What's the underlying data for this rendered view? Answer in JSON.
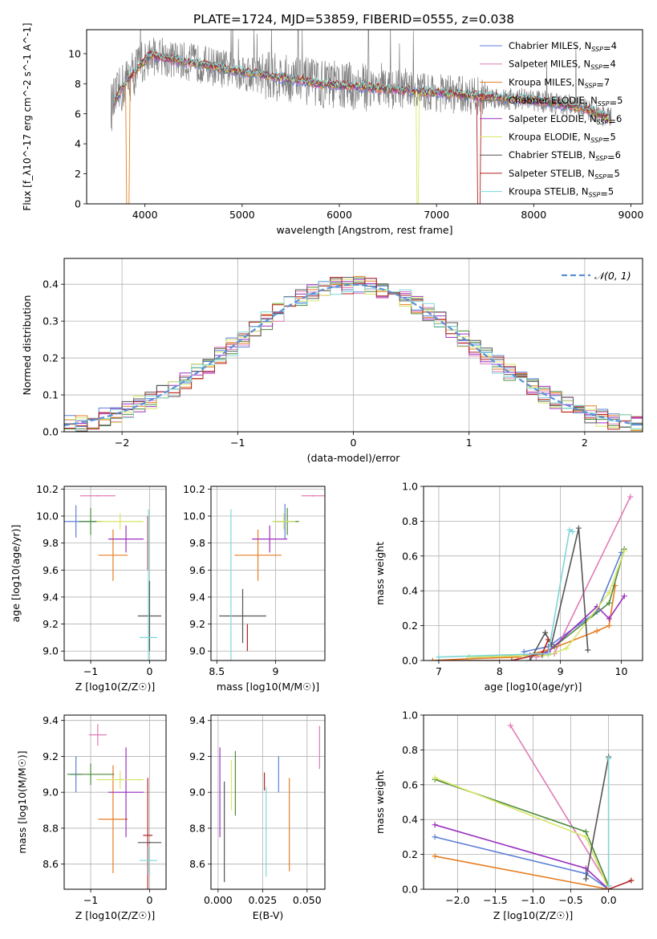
{
  "figure_title": "PLATE=1724, MJD=53859, FIBERID=0555, z=0.038",
  "colors": {
    "Chabrier MILES": "#5b7fd6",
    "Salpeter MILES": "#e07bb6",
    "Kroupa MILES": "#e67e22",
    "Chabrier ELODIE": "#4d8a3a",
    "Salpeter ELODIE": "#9b30c0",
    "Kroupa ELODIE": "#d8e66a",
    "Chabrier STELIB": "#555555",
    "Salpeter STELIB": "#b22222",
    "Kroupa STELIB": "#7fd6d8",
    "data": "#7f7f7f",
    "normal": "#5b8fd6"
  },
  "chart_data": [
    {
      "id": "spectrum",
      "type": "line",
      "xlabel": "wavelength [Angstrom, rest frame]",
      "ylabel": "Flux [f_λ10^-17 erg cm^-2 s^-1 A^-1]",
      "xlim": [
        3400,
        9120
      ],
      "ylim": [
        0,
        11.6
      ],
      "xticks": [
        4000,
        5000,
        6000,
        7000,
        8000,
        9000
      ],
      "yticks": [
        0,
        2,
        4,
        6,
        8,
        10
      ],
      "legend_position": "top-right",
      "legend": [
        {
          "model": "Chabrier MILES",
          "nssp": "4"
        },
        {
          "model": "Salpeter MILES",
          "nssp": "4"
        },
        {
          "model": "Kroupa MILES",
          "nssp": "7"
        },
        {
          "model": "Chabrier ELODIE",
          "nssp": "5"
        },
        {
          "model": "Salpeter ELODIE",
          "nssp": "6"
        },
        {
          "model": "Kroupa ELODIE",
          "nssp": "5"
        },
        {
          "model": "Chabrier STELIB",
          "nssp": "6"
        },
        {
          "model": "Salpeter STELIB",
          "nssp": "5"
        },
        {
          "model": "Kroupa STELIB",
          "nssp": "5"
        }
      ],
      "data_range": [
        3650,
        8800
      ],
      "model_continuum": {
        "x": [
          3650,
          3800,
          3950,
          4050,
          4200,
          4400,
          4600,
          4800,
          5000,
          5200,
          5400,
          5600,
          5800,
          6000,
          6200,
          6400,
          6600,
          6800,
          7000,
          7200,
          7400,
          7600,
          7800,
          8000,
          8200,
          8400,
          8600,
          8800
        ],
        "y": [
          6.4,
          8.1,
          9.2,
          9.9,
          9.7,
          9.5,
          9.3,
          9.0,
          8.8,
          8.6,
          8.4,
          8.2,
          8.0,
          7.9,
          7.8,
          7.7,
          7.6,
          7.5,
          7.4,
          7.3,
          7.2,
          7.1,
          7.0,
          6.9,
          6.7,
          6.5,
          6.2,
          5.6
        ]
      },
      "model_cutoffs": {
        "Kroupa MILES": 3810,
        "Kroupa ELODIE": 6790,
        "Salpeter STELIB": 7420
      }
    },
    {
      "id": "residual_hist",
      "type": "area",
      "xlabel": "(data-model)/error",
      "ylabel": "Normed distribution",
      "xlim": [
        -2.5,
        2.5
      ],
      "ylim": [
        0,
        0.47
      ],
      "xticks": [
        -2,
        -1,
        0,
        1,
        2
      ],
      "yticks": [
        0.0,
        0.1,
        0.2,
        0.3,
        0.4
      ],
      "grid": true,
      "legend": "𝒩(0, 1)",
      "legend_position": "top-right",
      "bin_width": 0.1
    },
    {
      "id": "age_vs_Z",
      "type": "scatter",
      "xlabel": "Z [log10(Z/Z☉)]",
      "ylabel": "age  [log10(age/yr)]",
      "xlim": [
        -1.45,
        0.28
      ],
      "ylim": [
        8.93,
        10.22
      ],
      "xticks": [
        -1,
        0
      ],
      "yticks": [
        9.0,
        9.2,
        9.4,
        9.6,
        9.8,
        10.0,
        10.2
      ],
      "grid": true,
      "series": [
        {
          "model": "Chabrier MILES",
          "x": -1.25,
          "xerr": 0.35,
          "y": 9.96,
          "yerr": 0.12
        },
        {
          "model": "Salpeter MILES",
          "x": -0.88,
          "xerr": 0.3,
          "y": 10.15,
          "yerr": 0.0
        },
        {
          "model": "Kroupa MILES",
          "x": -0.62,
          "xerr": 0.25,
          "y": 9.71,
          "yerr": 0.19
        },
        {
          "model": "Chabrier ELODIE",
          "x": -1.0,
          "xerr": 0.2,
          "y": 9.96,
          "yerr": 0.1
        },
        {
          "model": "Salpeter ELODIE",
          "x": -0.4,
          "xerr": 0.3,
          "y": 9.83,
          "yerr": 0.1
        },
        {
          "model": "Kroupa ELODIE",
          "x": -0.5,
          "xerr": 0.4,
          "y": 9.96,
          "yerr": 0.06
        },
        {
          "model": "Chabrier STELIB",
          "x": 0.0,
          "xerr": 0.2,
          "y": 9.26,
          "yerr": 0.26
        },
        {
          "model": "Salpeter STELIB",
          "x": -0.03,
          "xerr": 0.0,
          "y": 9.8,
          "yerr": 0.2
        },
        {
          "model": "Kroupa STELIB",
          "x": -0.02,
          "xerr": 0.15,
          "y": 9.1,
          "yerr": 0.95
        }
      ]
    },
    {
      "id": "age_vs_mass",
      "type": "scatter",
      "xlabel": "mass [log10(M/M☉)]",
      "ylabel": "",
      "xlim": [
        8.45,
        9.42
      ],
      "ylim": [
        8.93,
        10.22
      ],
      "xticks": [
        8.5,
        9.0
      ],
      "yticks": [
        9.0,
        9.2,
        9.4,
        9.6,
        9.8,
        10.0,
        10.2
      ],
      "grid": true,
      "series": [
        {
          "model": "Chabrier MILES",
          "x": 9.08,
          "xerr": 0.1,
          "y": 9.96,
          "yerr": 0.13
        },
        {
          "model": "Salpeter MILES",
          "x": 9.32,
          "xerr": 0.1,
          "y": 10.15,
          "yerr": 0.0
        },
        {
          "model": "Kroupa MILES",
          "x": 8.85,
          "xerr": 0.2,
          "y": 9.71,
          "yerr": 0.19
        },
        {
          "model": "Chabrier ELODIE",
          "x": 9.1,
          "xerr": 0.1,
          "y": 9.96,
          "yerr": 0.1
        },
        {
          "model": "Salpeter ELODIE",
          "x": 8.95,
          "xerr": 0.15,
          "y": 9.83,
          "yerr": 0.1
        },
        {
          "model": "Kroupa ELODIE",
          "x": 9.07,
          "xerr": 0.1,
          "y": 9.96,
          "yerr": 0.06
        },
        {
          "model": "Chabrier STELIB",
          "x": 8.72,
          "xerr": 0.2,
          "y": 9.26,
          "yerr": 0.2
        },
        {
          "model": "Salpeter STELIB",
          "x": 8.76,
          "xerr": 0.0,
          "y": 9.1,
          "yerr": 0.1
        },
        {
          "model": "Kroupa STELIB",
          "x": 8.62,
          "xerr": 0.0,
          "y": 9.1,
          "yerr": 0.95
        }
      ]
    },
    {
      "id": "weight_vs_age",
      "type": "line",
      "xlabel": "age  [log10(age/yr)]",
      "ylabel": "mass weight",
      "xlim": [
        6.75,
        10.35
      ],
      "ylim": [
        0,
        1.0
      ],
      "xticks": [
        7,
        8,
        9,
        10
      ],
      "yticks": [
        0.0,
        0.2,
        0.4,
        0.6,
        0.8,
        1.0
      ],
      "grid": true,
      "series": [
        {
          "model": "Chabrier MILES",
          "x": [
            8.4,
            8.8,
            9.6,
            10.0
          ],
          "y": [
            0.05,
            0.08,
            0.28,
            0.62
          ]
        },
        {
          "model": "Salpeter MILES",
          "x": [
            8.6,
            8.9,
            10.15
          ],
          "y": [
            0.02,
            0.04,
            0.94
          ]
        },
        {
          "model": "Kroupa MILES",
          "x": [
            6.9,
            7.5,
            8.3,
            8.8,
            9.6,
            9.8,
            9.9
          ],
          "y": [
            0.0,
            0.01,
            0.02,
            0.06,
            0.17,
            0.2,
            0.43
          ]
        },
        {
          "model": "Chabrier ELODIE",
          "x": [
            7.5,
            8.7,
            8.9,
            9.8,
            10.05
          ],
          "y": [
            0.02,
            0.03,
            0.08,
            0.33,
            0.64
          ]
        },
        {
          "model": "Salpeter ELODIE",
          "x": [
            8.5,
            8.8,
            9.6,
            9.8,
            10.05
          ],
          "y": [
            0.03,
            0.05,
            0.31,
            0.24,
            0.37
          ]
        },
        {
          "model": "Kroupa ELODIE",
          "x": [
            7.5,
            8.8,
            9.1,
            9.8,
            10.05
          ],
          "y": [
            0.02,
            0.03,
            0.07,
            0.39,
            0.63
          ]
        },
        {
          "model": "Chabrier STELIB",
          "x": [
            8.5,
            8.75,
            8.85,
            9.3,
            9.45
          ],
          "y": [
            0.0,
            0.16,
            0.09,
            0.76,
            0.06
          ]
        },
        {
          "model": "Salpeter STELIB",
          "x": [
            7.0,
            8.2,
            8.7,
            8.8
          ],
          "y": [
            0.0,
            0.0,
            0.04,
            0.12
          ]
        },
        {
          "model": "Kroupa STELIB",
          "x": [
            7.0,
            8.8,
            9.15,
            9.2
          ],
          "y": [
            0.02,
            0.04,
            0.75,
            0.74
          ]
        }
      ]
    },
    {
      "id": "mass_vs_Z",
      "type": "scatter",
      "xlabel": "Z [log10(Z/Z☉)]",
      "ylabel": "mass [log10(M/M☉)]",
      "xlim": [
        -1.45,
        0.28
      ],
      "ylim": [
        8.46,
        9.43
      ],
      "xticks": [
        -1,
        0
      ],
      "yticks": [
        8.6,
        8.8,
        9.0,
        9.2,
        9.4
      ],
      "grid": true,
      "series": [
        {
          "model": "Chabrier MILES",
          "x": -1.25,
          "xerr": 0.1,
          "y": 9.1,
          "yerr": 0.1
        },
        {
          "model": "Salpeter MILES",
          "x": -0.88,
          "xerr": 0.15,
          "y": 9.32,
          "yerr": 0.06
        },
        {
          "model": "Kroupa MILES",
          "x": -0.62,
          "xerr": 0.25,
          "y": 8.85,
          "yerr": 0.3
        },
        {
          "model": "Chabrier ELODIE",
          "x": -1.0,
          "xerr": 0.4,
          "y": 9.1,
          "yerr": 0.06
        },
        {
          "model": "Salpeter ELODIE",
          "x": -0.4,
          "xerr": 0.3,
          "y": 9.0,
          "yerr": 0.25
        },
        {
          "model": "Kroupa ELODIE",
          "x": -0.5,
          "xerr": 0.4,
          "y": 9.07,
          "yerr": 0.05
        },
        {
          "model": "Chabrier STELIB",
          "x": 0.0,
          "xerr": 0.2,
          "y": 8.72,
          "yerr": 0.0
        },
        {
          "model": "Salpeter STELIB",
          "x": -0.03,
          "xerr": 0.08,
          "y": 8.76,
          "yerr": 0.32
        },
        {
          "model": "Kroupa STELIB",
          "x": -0.02,
          "xerr": 0.15,
          "y": 8.62,
          "yerr": 0.08
        }
      ]
    },
    {
      "id": "mass_vs_ebv",
      "type": "scatter",
      "xlabel": "E(B-V)",
      "ylabel": "",
      "xlim": [
        -0.004,
        0.06
      ],
      "ylim": [
        8.46,
        9.43
      ],
      "xticks": [
        0.0,
        0.025,
        0.05
      ],
      "xtick_labels": [
        "0.000",
        "0.025",
        "0.050"
      ],
      "yticks": [
        8.6,
        8.8,
        9.0,
        9.2,
        9.4
      ],
      "grid": true,
      "series": [
        {
          "model": "Chabrier MILES",
          "x": 0.034,
          "y": 9.1,
          "yerr": 0.1
        },
        {
          "model": "Salpeter MILES",
          "x": 0.057,
          "y": 9.25,
          "yerr": 0.12
        },
        {
          "model": "Kroupa MILES",
          "x": 0.04,
          "y": 8.82,
          "yerr": 0.26
        },
        {
          "model": "Chabrier ELODIE",
          "x": 0.0097,
          "y": 9.05,
          "yerr": 0.18
        },
        {
          "model": "Salpeter ELODIE",
          "x": 0.001,
          "y": 9.0,
          "yerr": 0.25
        },
        {
          "model": "Kroupa ELODIE",
          "x": 0.0075,
          "y": 9.04,
          "yerr": 0.14
        },
        {
          "model": "Chabrier STELIB",
          "x": 0.0035,
          "y": 8.78,
          "yerr": 0.28
        },
        {
          "model": "Salpeter STELIB",
          "x": 0.026,
          "y": 9.06,
          "yerr": 0.05
        },
        {
          "model": "Kroupa STELIB",
          "x": 0.027,
          "y": 8.78,
          "yerr": 0.25
        }
      ]
    },
    {
      "id": "weight_vs_Z",
      "type": "line",
      "xlabel": "Z [log10(Z/Z☉)]",
      "ylabel": "mass weight",
      "xlim": [
        -2.45,
        0.45
      ],
      "ylim": [
        0,
        1.0
      ],
      "xticks": [
        -2.0,
        -1.5,
        -1.0,
        -0.5,
        0.0
      ],
      "xtick_labels": [
        "−2.0",
        "−1.5",
        "−1.0",
        "−0.5",
        "0.0"
      ],
      "yticks": [
        0.0,
        0.2,
        0.4,
        0.6,
        0.8,
        1.0
      ],
      "grid": true,
      "series": [
        {
          "model": "Chabrier MILES",
          "x": [
            -2.3,
            -0.3,
            0.0
          ],
          "y": [
            0.3,
            0.09,
            0.0
          ]
        },
        {
          "model": "Salpeter MILES",
          "x": [
            -1.3,
            0.0
          ],
          "y": [
            0.94,
            0.02
          ]
        },
        {
          "model": "Kroupa MILES",
          "x": [
            -2.3,
            0.0
          ],
          "y": [
            0.19,
            0.0
          ]
        },
        {
          "model": "Chabrier ELODIE",
          "x": [
            -2.3,
            -0.3,
            0.0
          ],
          "y": [
            0.63,
            0.33,
            0.02
          ]
        },
        {
          "model": "Salpeter ELODIE",
          "x": [
            -2.3,
            -0.3,
            0.0
          ],
          "y": [
            0.37,
            0.12,
            0.0
          ]
        },
        {
          "model": "Kroupa ELODIE",
          "x": [
            -2.3,
            -0.3,
            0.0
          ],
          "y": [
            0.64,
            0.3,
            0.0
          ]
        },
        {
          "model": "Chabrier STELIB",
          "x": [
            -0.3,
            0.0
          ],
          "y": [
            0.06,
            0.76
          ]
        },
        {
          "model": "Salpeter STELIB",
          "x": [
            0.0,
            0.3
          ],
          "y": [
            0.0,
            0.05
          ]
        },
        {
          "model": "Kroupa STELIB",
          "x": [
            0.0,
            0.0
          ],
          "y": [
            0.02,
            0.75
          ]
        }
      ]
    }
  ]
}
